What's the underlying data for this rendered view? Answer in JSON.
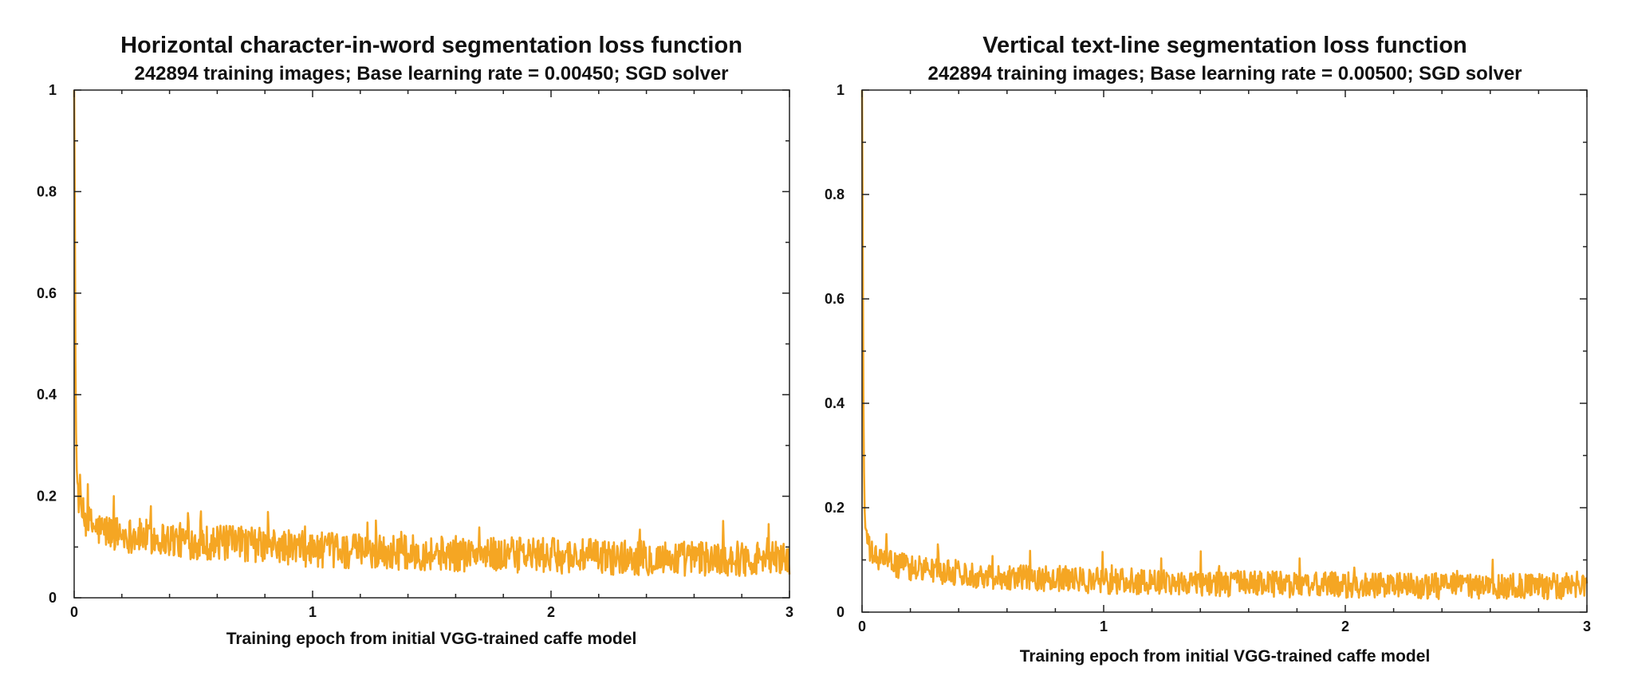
{
  "chart_data": [
    {
      "type": "line",
      "title": "Horizontal character-in-word segmentation loss function",
      "subtitle": "242894 training images; Base learning rate = 0.00450; SGD solver",
      "xlabel": "Training epoch from initial VGG-trained caffe model",
      "ylabel": "",
      "xlim": [
        0,
        3
      ],
      "ylim": [
        0,
        1
      ],
      "x_ticks": [
        0,
        1,
        2,
        3
      ],
      "x_tick_labels": [
        "0",
        "1",
        "2",
        "3"
      ],
      "y_ticks": [
        0,
        0.2,
        0.4,
        0.6,
        0.8,
        1
      ],
      "y_tick_labels": [
        "0",
        "0.2",
        "0.4",
        "0.6",
        "0.8",
        "1"
      ],
      "grid": false,
      "line_color": "#f5a623",
      "series": [
        {
          "x": [
            0,
            0.003,
            0.006,
            0.01,
            0.015,
            0.02,
            0.03,
            0.05,
            0.1,
            0.2,
            0.3,
            0.5,
            0.75,
            1.0,
            1.25,
            1.5,
            1.75,
            2.0,
            2.25,
            2.5,
            2.75,
            3.0
          ],
          "values": [
            1.0,
            0.75,
            0.4,
            0.26,
            0.22,
            0.19,
            0.17,
            0.15,
            0.135,
            0.125,
            0.12,
            0.11,
            0.105,
            0.095,
            0.09,
            0.088,
            0.085,
            0.083,
            0.08,
            0.078,
            0.077,
            0.08
          ],
          "noise": 0.035
        }
      ]
    },
    {
      "type": "line",
      "title": "Vertical text-line segmentation loss function",
      "subtitle": "242894 training images; Base learning rate = 0.00500; SGD solver",
      "xlabel": "Training epoch from initial VGG-trained caffe model",
      "ylabel": "",
      "xlim": [
        0,
        3
      ],
      "ylim": [
        0,
        1
      ],
      "x_ticks": [
        0,
        1,
        2,
        3
      ],
      "x_tick_labels": [
        "0",
        "1",
        "2",
        "3"
      ],
      "y_ticks": [
        0,
        0.2,
        0.4,
        0.6,
        0.8,
        1
      ],
      "y_tick_labels": [
        "0",
        "0.2",
        "0.4",
        "0.6",
        "0.8",
        "1"
      ],
      "grid": false,
      "line_color": "#f5a623",
      "series": [
        {
          "x": [
            0,
            0.003,
            0.006,
            0.01,
            0.015,
            0.02,
            0.03,
            0.05,
            0.1,
            0.2,
            0.3,
            0.5,
            0.75,
            1.0,
            1.25,
            1.5,
            1.75,
            2.0,
            2.25,
            2.5,
            2.75,
            3.0
          ],
          "values": [
            1.0,
            0.7,
            0.35,
            0.2,
            0.16,
            0.14,
            0.12,
            0.105,
            0.095,
            0.085,
            0.08,
            0.07,
            0.065,
            0.06,
            0.058,
            0.055,
            0.053,
            0.052,
            0.05,
            0.05,
            0.049,
            0.05
          ],
          "noise": 0.025
        }
      ]
    }
  ]
}
